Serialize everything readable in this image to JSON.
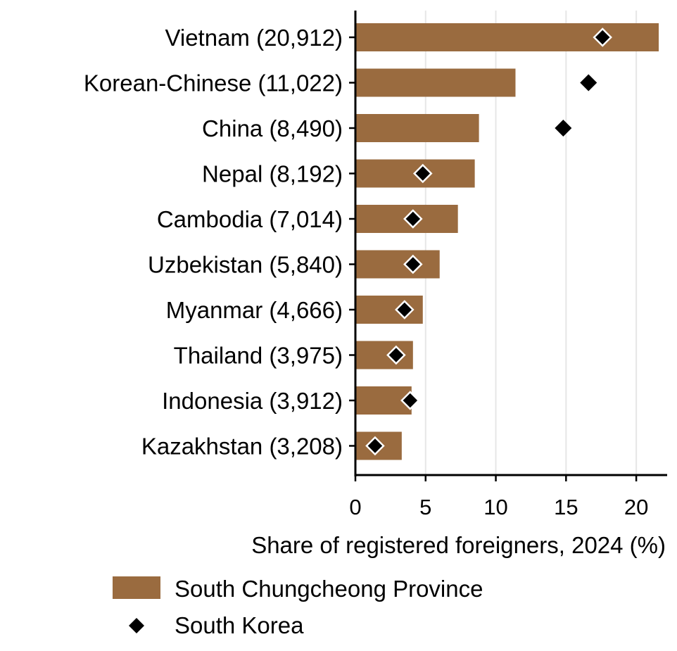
{
  "chart_data": {
    "type": "bar",
    "orientation": "horizontal",
    "categories": [
      "Vietnam (20,912)",
      "Korean-Chinese (11,022)",
      "China (8,490)",
      "Nepal (8,192)",
      "Cambodia (7,014)",
      "Uzbekistan (5,840)",
      "Myanmar (4,666)",
      "Thailand (3,975)",
      "Indonesia (3,912)",
      "Kazakhstan (3,208)"
    ],
    "series": [
      {
        "name": "South Chungcheong Province",
        "kind": "bar",
        "color": "#9a6b3f",
        "values": [
          21.6,
          11.4,
          8.8,
          8.5,
          7.3,
          6.0,
          4.8,
          4.1,
          4.0,
          3.3
        ]
      },
      {
        "name": "South Korea",
        "kind": "marker",
        "marker": "diamond",
        "color": "#000000",
        "values": [
          17.6,
          16.6,
          14.8,
          4.8,
          4.1,
          4.1,
          3.5,
          2.9,
          3.9,
          1.4
        ]
      }
    ],
    "xlabel": "Share of registered foreigners, 2024 (%)",
    "ylabel": "",
    "xlim": [
      0,
      22.2
    ],
    "xticks": [
      "0",
      "5",
      "10",
      "15",
      "20"
    ],
    "grid": "vertical",
    "legend_position": "bottom"
  }
}
